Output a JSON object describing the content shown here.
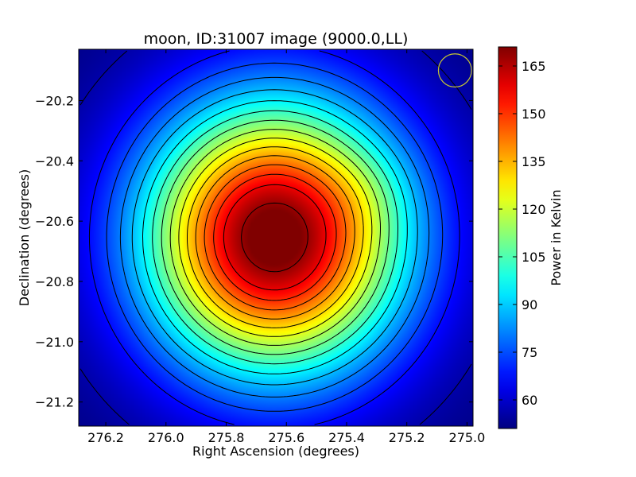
{
  "chart_data": {
    "type": "heatmap",
    "title": "moon, ID:31007 image (9000.0,LL)",
    "xlabel": "Right Ascension (degrees)",
    "ylabel": "Declination (degrees)",
    "colorbar_label": "Power in Kelvin",
    "colormap": "jet",
    "x_ticks": [
      276.2,
      276.0,
      275.8,
      275.6,
      275.4,
      275.2,
      275.0
    ],
    "x_tick_labels": [
      "276.2",
      "276.0",
      "275.8",
      "275.6",
      "275.4",
      "275.2",
      "275.0"
    ],
    "xlim": [
      276.29,
      274.98
    ],
    "y_ticks": [
      -20.2,
      -20.4,
      -20.6,
      -20.8,
      -21.0,
      -21.2
    ],
    "y_tick_labels": [
      "−20.2",
      "−20.4",
      "−20.6",
      "−20.8",
      "−21.0",
      "−21.2"
    ],
    "ylim": [
      -21.28,
      -20.03
    ],
    "colorbar_ticks": [
      60,
      75,
      90,
      105,
      120,
      135,
      150,
      165
    ],
    "colorbar_tick_labels": [
      "60",
      "75",
      "90",
      "105",
      "120",
      "135",
      "150",
      "165"
    ],
    "value_range": [
      51,
      171
    ],
    "peak": {
      "ra": 275.64,
      "dec": -20.655,
      "value": 171
    },
    "background_value": 51,
    "contour_levels": [
      56,
      67,
      74,
      81,
      88,
      95,
      102,
      109,
      116,
      123,
      130,
      137,
      144,
      151,
      158,
      168
    ],
    "beam": {
      "ra": 275.04,
      "dec": -20.1,
      "radius_deg": 0.055,
      "color": "#c8c832"
    }
  }
}
